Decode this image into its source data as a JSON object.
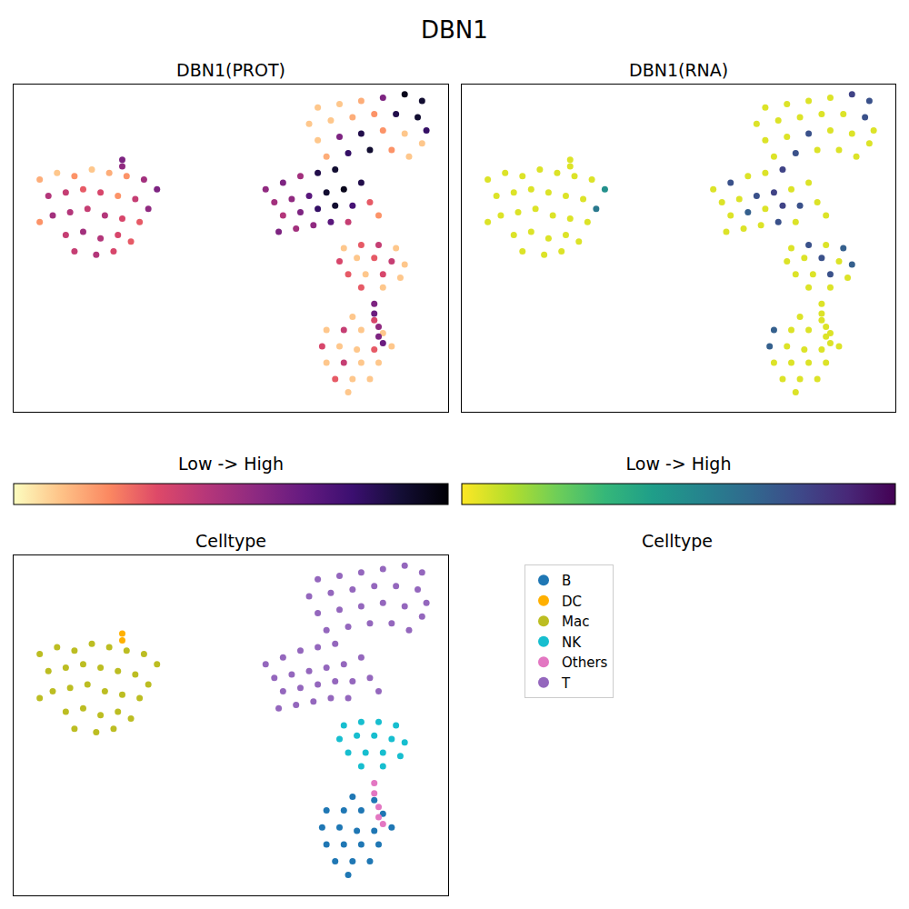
{
  "title": "DBN1",
  "chart_data": [
    {
      "type": "scatter",
      "title": "DBN1(PROT)",
      "color": "magma_r",
      "xlim": [
        0,
        100
      ],
      "ylim": [
        0,
        100
      ],
      "tick_labels": false,
      "grid": false,
      "x": [
        78,
        83,
        72,
        76,
        80,
        85,
        71,
        75,
        79,
        83,
        87,
        72,
        76,
        80,
        84,
        74,
        78,
        82,
        77,
        25,
        25,
        6,
        10,
        14,
        18,
        22,
        26,
        30,
        33,
        8,
        12,
        16,
        20,
        24,
        28,
        31,
        9,
        13,
        17,
        21,
        25,
        29,
        12,
        16,
        20,
        24,
        27,
        14,
        19,
        23,
        6,
        76,
        80,
        84,
        88,
        75,
        79,
        83,
        87,
        90,
        77,
        81,
        85,
        89,
        80,
        85,
        83,
        83,
        84,
        84,
        85,
        70,
        75,
        80,
        85,
        90,
        94,
        68,
        73,
        78,
        83,
        88,
        93,
        95,
        70,
        75,
        80,
        85,
        90,
        94,
        72,
        77,
        82,
        87,
        91,
        58,
        62,
        66,
        70,
        74,
        60,
        64,
        68,
        72,
        76,
        80,
        62,
        66,
        70,
        74,
        78,
        82,
        65,
        69,
        73,
        77,
        61,
        84
      ],
      "y": [
        29,
        28,
        25,
        25,
        25,
        24,
        20,
        20,
        19,
        19,
        20,
        15,
        15,
        15,
        15,
        10,
        10,
        10,
        6,
        77,
        75,
        71,
        73,
        72,
        74,
        73,
        72,
        71,
        68,
        66,
        67,
        68,
        67,
        66,
        65,
        62,
        60,
        61,
        62,
        60,
        59,
        58,
        54,
        55,
        53,
        54,
        52,
        49,
        48,
        49,
        58,
        50,
        51,
        51,
        50,
        46,
        47,
        47,
        46,
        45,
        42,
        42,
        42,
        41,
        38,
        38,
        33,
        30,
        26,
        23,
        21,
        93,
        94,
        95,
        96,
        97,
        95,
        88,
        89,
        90,
        91,
        91,
        90,
        86,
        83,
        84,
        85,
        86,
        85,
        82,
        78,
        79,
        80,
        80,
        78,
        68,
        70,
        72,
        73,
        74,
        64,
        65,
        66,
        67,
        68,
        70,
        60,
        61,
        62,
        63,
        63,
        64,
        56,
        57,
        58,
        58,
        55,
        60
      ],
      "values": [
        0.1,
        0.35,
        0.1,
        0.4,
        0.1,
        0.1,
        0.35,
        0.1,
        0.1,
        0.3,
        0.1,
        0.1,
        0.4,
        0.1,
        0.1,
        0.3,
        0.1,
        0.1,
        0.1,
        0.6,
        0.55,
        0.15,
        0.1,
        0.2,
        0.1,
        0.15,
        0.2,
        0.5,
        0.6,
        0.45,
        0.4,
        0.3,
        0.35,
        0.2,
        0.4,
        0.55,
        0.5,
        0.45,
        0.4,
        0.45,
        0.35,
        0.3,
        0.4,
        0.5,
        0.45,
        0.35,
        0.3,
        0.4,
        0.45,
        0.35,
        0.2,
        0.1,
        0.3,
        0.4,
        0.1,
        0.35,
        0.1,
        0.3,
        0.4,
        0.1,
        0.3,
        0.1,
        0.35,
        0.1,
        0.3,
        0.1,
        0.6,
        0.65,
        0.55,
        0.6,
        0.65,
        0.1,
        0.1,
        0.15,
        0.6,
        0.95,
        0.9,
        0.1,
        0.1,
        0.15,
        0.2,
        0.85,
        0.9,
        0.8,
        0.1,
        0.6,
        0.85,
        0.2,
        0.1,
        0.1,
        0.15,
        0.8,
        0.9,
        0.2,
        0.1,
        0.55,
        0.6,
        0.5,
        0.85,
        0.9,
        0.5,
        0.55,
        0.7,
        0.9,
        0.95,
        0.85,
        0.45,
        0.6,
        0.8,
        0.9,
        0.75,
        0.3,
        0.5,
        0.55,
        0.7,
        0.4,
        0.6,
        0.2
      ],
      "colorbar": {
        "title": "Low -> High",
        "range": [
          0,
          1
        ]
      }
    },
    {
      "type": "scatter",
      "title": "DBN1(RNA)",
      "color": "viridis_r",
      "xlim": [
        0,
        100
      ],
      "ylim": [
        0,
        100
      ],
      "tick_labels": false,
      "grid": false,
      "x": [
        78,
        83,
        72,
        76,
        80,
        85,
        71,
        75,
        79,
        83,
        87,
        72,
        76,
        80,
        84,
        74,
        78,
        82,
        77,
        25,
        25,
        6,
        10,
        14,
        18,
        22,
        26,
        30,
        33,
        8,
        12,
        16,
        20,
        24,
        28,
        31,
        9,
        13,
        17,
        21,
        25,
        29,
        12,
        16,
        20,
        24,
        27,
        14,
        19,
        23,
        6,
        76,
        80,
        84,
        88,
        75,
        79,
        83,
        87,
        90,
        77,
        81,
        85,
        89,
        80,
        85,
        83,
        83,
        84,
        84,
        85,
        70,
        75,
        80,
        85,
        90,
        94,
        68,
        73,
        78,
        83,
        88,
        93,
        95,
        70,
        75,
        80,
        85,
        90,
        94,
        72,
        77,
        82,
        87,
        91,
        58,
        62,
        66,
        70,
        74,
        60,
        64,
        68,
        72,
        76,
        80,
        62,
        66,
        70,
        74,
        78,
        82,
        65,
        69,
        73,
        77,
        61,
        84
      ],
      "y": [
        29,
        28,
        25,
        25,
        25,
        24,
        20,
        20,
        19,
        19,
        20,
        15,
        15,
        15,
        15,
        10,
        10,
        10,
        6,
        77,
        75,
        71,
        73,
        72,
        74,
        73,
        72,
        71,
        68,
        66,
        67,
        68,
        67,
        66,
        65,
        62,
        60,
        61,
        62,
        60,
        59,
        58,
        54,
        55,
        53,
        54,
        52,
        49,
        48,
        49,
        58,
        50,
        51,
        51,
        50,
        46,
        47,
        47,
        46,
        45,
        42,
        42,
        42,
        41,
        38,
        38,
        33,
        30,
        26,
        23,
        21,
        93,
        94,
        95,
        96,
        97,
        95,
        88,
        89,
        90,
        91,
        91,
        90,
        86,
        83,
        84,
        85,
        86,
        85,
        82,
        78,
        79,
        80,
        80,
        78,
        68,
        70,
        72,
        73,
        74,
        64,
        65,
        66,
        67,
        68,
        70,
        60,
        61,
        62,
        63,
        63,
        64,
        56,
        57,
        58,
        58,
        55,
        60
      ],
      "values": [
        0.05,
        0.05,
        0.7,
        0.05,
        0.05,
        0.05,
        0.7,
        0.05,
        0.05,
        0.05,
        0.05,
        0.05,
        0.05,
        0.05,
        0.05,
        0.05,
        0.05,
        0.05,
        0.05,
        0.05,
        0.05,
        0.05,
        0.05,
        0.05,
        0.05,
        0.05,
        0.05,
        0.05,
        0.5,
        0.05,
        0.05,
        0.05,
        0.05,
        0.05,
        0.05,
        0.6,
        0.05,
        0.05,
        0.05,
        0.05,
        0.05,
        0.05,
        0.05,
        0.05,
        0.05,
        0.05,
        0.05,
        0.05,
        0.05,
        0.05,
        0.05,
        0.05,
        0.75,
        0.05,
        0.7,
        0.05,
        0.05,
        0.75,
        0.05,
        0.7,
        0.05,
        0.05,
        0.75,
        0.05,
        0.05,
        0.05,
        0.05,
        0.05,
        0.05,
        0.05,
        0.05,
        0.05,
        0.05,
        0.05,
        0.05,
        0.8,
        0.75,
        0.05,
        0.05,
        0.05,
        0.05,
        0.05,
        0.75,
        0.05,
        0.05,
        0.05,
        0.75,
        0.05,
        0.05,
        0.05,
        0.05,
        0.75,
        0.05,
        0.05,
        0.05,
        0.05,
        0.75,
        0.05,
        0.05,
        0.8,
        0.05,
        0.05,
        0.75,
        0.8,
        0.05,
        0.05,
        0.05,
        0.7,
        0.05,
        0.8,
        0.75,
        0.05,
        0.05,
        0.05,
        0.75,
        0.05,
        0.05,
        0.05
      ],
      "colorbar": {
        "title": "Low -> High",
        "range": [
          0,
          1
        ]
      }
    },
    {
      "type": "scatter",
      "title": "Celltype",
      "legend": "right",
      "legend_title": "Celltype",
      "xlim": [
        0,
        100
      ],
      "ylim": [
        0,
        100
      ],
      "tick_labels": false,
      "grid": false,
      "series": [
        {
          "name": "B",
          "color": "#1f77b4",
          "x": [
            78,
            83,
            72,
            76,
            80,
            85,
            71,
            75,
            79,
            83,
            87,
            72,
            76,
            80,
            84,
            74,
            78,
            82,
            77
          ],
          "y": [
            29,
            28,
            25,
            25,
            25,
            24,
            20,
            20,
            19,
            19,
            20,
            15,
            15,
            15,
            15,
            10,
            10,
            10,
            6
          ]
        },
        {
          "name": "DC",
          "color": "#ffb000",
          "x": [
            25,
            25
          ],
          "y": [
            77,
            75
          ]
        },
        {
          "name": "Mac",
          "color": "#bcbd22",
          "x": [
            6,
            10,
            14,
            18,
            22,
            26,
            30,
            33,
            8,
            12,
            16,
            20,
            24,
            28,
            31,
            9,
            13,
            17,
            21,
            25,
            29,
            12,
            16,
            20,
            24,
            27,
            14,
            19,
            23,
            6
          ],
          "y": [
            71,
            73,
            72,
            74,
            73,
            72,
            71,
            68,
            66,
            67,
            68,
            67,
            66,
            65,
            62,
            60,
            61,
            62,
            60,
            59,
            58,
            54,
            55,
            53,
            54,
            52,
            49,
            48,
            49,
            58
          ]
        },
        {
          "name": "NK",
          "color": "#17becf",
          "x": [
            76,
            80,
            84,
            88,
            75,
            79,
            83,
            87,
            90,
            77,
            81,
            85,
            89,
            80,
            85
          ],
          "y": [
            50,
            51,
            51,
            50,
            46,
            47,
            47,
            46,
            45,
            42,
            42,
            42,
            41,
            38,
            38
          ]
        },
        {
          "name": "Others",
          "color": "#e377c2",
          "x": [
            83,
            83,
            84,
            84,
            85
          ],
          "y": [
            33,
            30,
            26,
            23,
            21
          ]
        },
        {
          "name": "T",
          "color": "#9467bd",
          "x": [
            70,
            75,
            80,
            85,
            90,
            94,
            68,
            73,
            78,
            83,
            88,
            93,
            95,
            70,
            75,
            80,
            85,
            90,
            94,
            72,
            77,
            82,
            87,
            91,
            58,
            62,
            66,
            70,
            74,
            60,
            64,
            68,
            72,
            76,
            80,
            62,
            66,
            70,
            74,
            78,
            82,
            65,
            69,
            73,
            77,
            61,
            84
          ],
          "y": [
            93,
            94,
            95,
            96,
            97,
            95,
            88,
            89,
            90,
            91,
            91,
            90,
            86,
            83,
            84,
            85,
            86,
            85,
            82,
            78,
            79,
            80,
            80,
            78,
            68,
            70,
            72,
            73,
            74,
            64,
            65,
            66,
            67,
            68,
            70,
            60,
            61,
            62,
            63,
            63,
            64,
            56,
            57,
            58,
            58,
            55,
            60
          ]
        }
      ]
    }
  ]
}
